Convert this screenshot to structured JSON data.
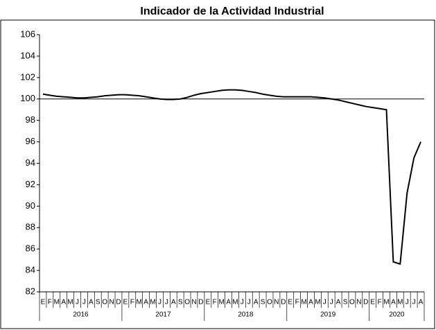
{
  "chart_data": {
    "type": "line",
    "title": "Indicador de la Actividad Industrial",
    "categories": [
      "E",
      "F",
      "M",
      "A",
      "M",
      "J",
      "J",
      "A",
      "S",
      "O",
      "N",
      "D",
      "E",
      "F",
      "M",
      "A",
      "M",
      "J",
      "J",
      "A",
      "S",
      "O",
      "N",
      "D",
      "E",
      "F",
      "M",
      "A",
      "M",
      "J",
      "J",
      "A",
      "S",
      "O",
      "N",
      "D",
      "E",
      "F",
      "M",
      "A",
      "M",
      "J",
      "J",
      "A",
      "S",
      "O",
      "N",
      "D",
      "E",
      "F",
      "M",
      "A",
      "M",
      "J",
      "J",
      "A"
    ],
    "groups": [
      "2016",
      "2017",
      "2018",
      "2019",
      "2020"
    ],
    "series": [
      {
        "name": "Indicador",
        "color": "#000000",
        "values": [
          100.45,
          100.35,
          100.25,
          100.2,
          100.15,
          100.1,
          100.1,
          100.15,
          100.2,
          100.3,
          100.35,
          100.4,
          100.4,
          100.35,
          100.3,
          100.2,
          100.1,
          100.0,
          99.95,
          99.95,
          100.0,
          100.15,
          100.35,
          100.5,
          100.6,
          100.7,
          100.8,
          100.85,
          100.85,
          100.8,
          100.7,
          100.6,
          100.45,
          100.35,
          100.25,
          100.2,
          100.2,
          100.2,
          100.2,
          100.2,
          100.15,
          100.1,
          100.0,
          99.9,
          99.75,
          99.6,
          99.45,
          99.3,
          99.2,
          99.1,
          99.0,
          84.8,
          84.6,
          91.2,
          94.5,
          96.0
        ]
      }
    ],
    "reference_line": 100,
    "ylim": [
      82,
      106
    ],
    "yticks": [
      82,
      84,
      86,
      88,
      90,
      92,
      94,
      96,
      98,
      100,
      102,
      104,
      106
    ],
    "grid": false
  }
}
